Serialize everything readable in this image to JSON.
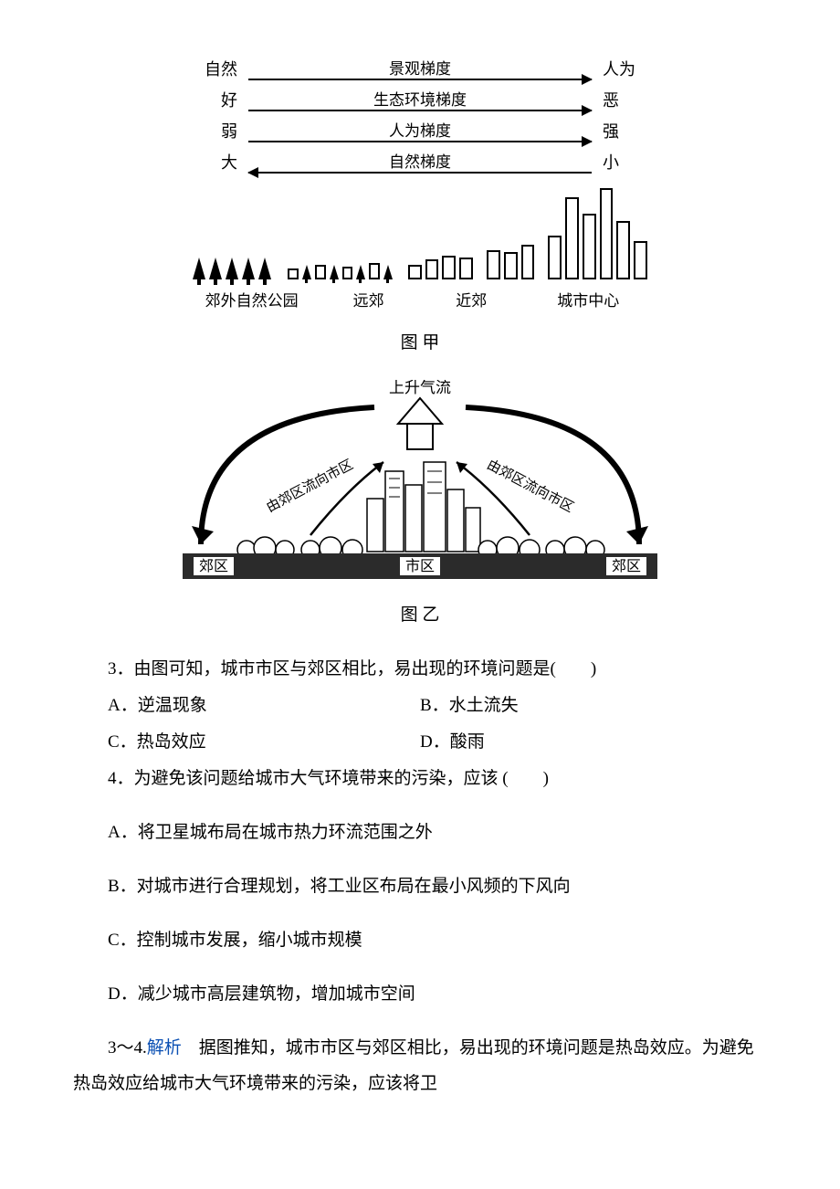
{
  "diag_jia": {
    "gradients": [
      {
        "left": "自然",
        "label": "景观梯度",
        "right": "人为",
        "dir": "right"
      },
      {
        "left": "好",
        "label": "生态环境梯度",
        "right": "恶",
        "dir": "right"
      },
      {
        "left": "弱",
        "label": "人为梯度",
        "right": "强",
        "dir": "right"
      },
      {
        "left": "大",
        "label": "自然梯度",
        "right": "小",
        "dir": "left"
      }
    ],
    "skyline": {
      "trees": [
        {
          "x": 0,
          "size": "big"
        },
        {
          "x": 1,
          "size": "big"
        },
        {
          "x": 2,
          "size": "big"
        },
        {
          "x": 3,
          "size": "big"
        },
        {
          "x": 4,
          "size": "big"
        }
      ],
      "mix_trees": [
        {
          "size": "sm"
        },
        {
          "size": "sm"
        },
        {
          "size": "sm"
        },
        {
          "size": "sm"
        }
      ],
      "buildings_heights": [
        8,
        12,
        10,
        14,
        12,
        18,
        22,
        20,
        28,
        26,
        34,
        44,
        86,
        68,
        96,
        60,
        38
      ],
      "bar_color": "#ffffff",
      "bar_border": "#000000",
      "tree_color": "#000000"
    },
    "zones": {
      "z1": "郊外自然公园",
      "z2": "远郊",
      "z3": "近郊",
      "z4": "城市中心"
    },
    "caption": "图 甲",
    "font_size": 18,
    "arrow_color": "#000000"
  },
  "diag_yi": {
    "top_label": "上升气流",
    "left_flow": "由郊区流向市区",
    "right_flow": "由郊区流向市区",
    "band_labels": {
      "left": "郊区",
      "center": "市区",
      "right": "郊区"
    },
    "band_bg": "#2b2b2b",
    "band_label_bg": "#ffffff",
    "arc_color": "#000000",
    "up_arrow_fill": "#ffffff",
    "caption": "图 乙",
    "font_size": 18
  },
  "q3": {
    "stem": "3．由图可知，城市市区与郊区相比，易出现的环境问题是(　　)",
    "A": "A．逆温现象",
    "B": "B．水土流失",
    "C": "C．热岛效应",
    "D": "D．酸雨"
  },
  "q4": {
    "stem": "4．为避免该问题给城市大气环境带来的污染，应该 (　　)",
    "A": "A．将卫星城布局在城市热力环流范围之外",
    "B": "B．对城市进行合理规划，将工业区布局在最小风频的下风向",
    "C": "C．控制城市发展，缩小城市规模",
    "D": "D．减少城市高层建筑物，增加城市空间"
  },
  "analysis": {
    "prefix": "3～4.",
    "label": "解析",
    "text": "　据图推知，城市市区与郊区相比，易出现的环境问题是热岛效应。为避免热岛效应给城市大气环境带来的污染，应该将卫"
  }
}
